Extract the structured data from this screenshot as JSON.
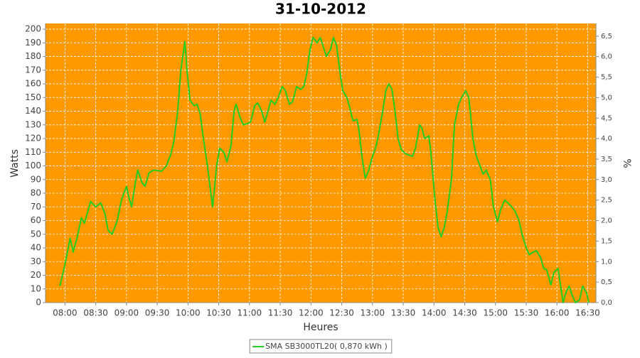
{
  "chart_data": {
    "type": "line",
    "title": "31-10-2012",
    "xlabel": "Heures",
    "ylabel": "Watts",
    "y2label": "%",
    "x": [
      "07:55",
      "08:00",
      "08:05",
      "08:08",
      "08:12",
      "08:16",
      "08:19",
      "08:25",
      "08:30",
      "08:35",
      "08:39",
      "08:42",
      "08:46",
      "08:51",
      "08:55",
      "09:00",
      "09:02",
      "09:05",
      "09:08",
      "09:11",
      "09:15",
      "09:18",
      "09:22",
      "09:27",
      "09:34",
      "09:39",
      "09:43",
      "09:46",
      "09:50",
      "09:53",
      "09:57",
      "09:59",
      "10:02",
      "10:06",
      "10:09",
      "10:12",
      "10:15",
      "10:19",
      "10:24",
      "10:28",
      "10:31",
      "10:35",
      "10:38",
      "10:42",
      "10:45",
      "10:47",
      "10:51",
      "10:54",
      "10:58",
      "11:01",
      "11:05",
      "11:08",
      "11:12",
      "11:15",
      "11:18",
      "11:21",
      "11:25",
      "11:28",
      "11:32",
      "11:35",
      "11:39",
      "11:42",
      "11:46",
      "11:50",
      "11:53",
      "11:56",
      "11:59",
      "12:02",
      "12:06",
      "12:09",
      "12:13",
      "12:15",
      "12:19",
      "12:22",
      "12:25",
      "12:28",
      "12:31",
      "12:35",
      "12:38",
      "12:41",
      "12:45",
      "12:47",
      "12:50",
      "12:53",
      "12:56",
      "13:00",
      "13:03",
      "13:06",
      "13:10",
      "13:13",
      "13:16",
      "13:19",
      "13:22",
      "13:25",
      "13:28",
      "13:32",
      "13:35",
      "13:39",
      "13:42",
      "13:46",
      "13:48",
      "13:51",
      "13:55",
      "13:57",
      "14:01",
      "14:04",
      "14:07",
      "14:10",
      "14:13",
      "14:17",
      "14:20",
      "14:24",
      "14:27",
      "14:31",
      "14:34",
      "14:38",
      "14:41",
      "14:45",
      "14:48",
      "14:51",
      "14:55",
      "14:58",
      "15:02",
      "15:05",
      "15:09",
      "15:12",
      "15:16",
      "15:19",
      "15:23",
      "15:26",
      "15:30",
      "15:33",
      "15:37",
      "15:40",
      "15:44",
      "15:47",
      "15:50",
      "15:54",
      "15:57",
      "16:01",
      "16:04",
      "16:06",
      "16:09",
      "16:12",
      "16:15",
      "16:18",
      "16:22",
      "16:25",
      "16:29",
      "16:31"
    ],
    "series": [
      {
        "name": "SMA SB3000TL20( 0,870 kWh )",
        "color": "#22cc22",
        "values": [
          12,
          28,
          47,
          37,
          48,
          62,
          58,
          74,
          70,
          73,
          65,
          53,
          50,
          60,
          75,
          85,
          78,
          70,
          85,
          97,
          88,
          85,
          95,
          97,
          96,
          100,
          108,
          117,
          140,
          170,
          191,
          170,
          148,
          144,
          145,
          138,
          120,
          100,
          70,
          100,
          113,
          110,
          103,
          115,
          140,
          145,
          135,
          130,
          131,
          132,
          144,
          146,
          140,
          132,
          140,
          148,
          145,
          150,
          158,
          155,
          145,
          147,
          158,
          156,
          158,
          168,
          185,
          194,
          190,
          194,
          185,
          180,
          185,
          194,
          188,
          170,
          155,
          150,
          142,
          133,
          134,
          125,
          105,
          91,
          96,
          107,
          113,
          123,
          140,
          155,
          160,
          156,
          140,
          120,
          112,
          109,
          108,
          107,
          113,
          130,
          128,
          120,
          122,
          110,
          75,
          55,
          48,
          55,
          67,
          90,
          130,
          145,
          150,
          155,
          150,
          120,
          108,
          100,
          94,
          97,
          90,
          70,
          59,
          68,
          75,
          73,
          70,
          67,
          60,
          50,
          40,
          35,
          37,
          38,
          33,
          25,
          24,
          13,
          22,
          25,
          10,
          0,
          8,
          12,
          5,
          0,
          2,
          12,
          7,
          0
        ]
      }
    ],
    "xlim": [
      "07:41",
      "16:38"
    ],
    "xticks": [
      "08:00",
      "08:30",
      "09:00",
      "09:30",
      "10:00",
      "10:30",
      "11:00",
      "11:30",
      "12:00",
      "12:30",
      "13:00",
      "13:30",
      "14:00",
      "14:30",
      "15:00",
      "15:30",
      "16:00",
      "16:30"
    ],
    "ylim": [
      0,
      204.2
    ],
    "yticks": [
      0,
      10,
      20,
      30,
      40,
      50,
      60,
      70,
      80,
      90,
      100,
      110,
      120,
      130,
      140,
      150,
      160,
      170,
      180,
      190,
      200
    ],
    "y2lim": [
      0,
      6.81
    ],
    "y2ticks": [
      {
        "value": 0,
        "label": "0,0"
      },
      {
        "value": 0.5,
        "label": "0,5"
      },
      {
        "value": 1,
        "label": "1,0"
      },
      {
        "value": 1.5,
        "label": "1,5"
      },
      {
        "value": 2,
        "label": "2,0"
      },
      {
        "value": 2.5,
        "label": "2,5"
      },
      {
        "value": 3,
        "label": "3,0"
      },
      {
        "value": 3.5,
        "label": "3,5"
      },
      {
        "value": 4,
        "label": "4,0"
      },
      {
        "value": 4.5,
        "label": "4,5"
      },
      {
        "value": 5,
        "label": "5,0"
      },
      {
        "value": 5.5,
        "label": "5,5"
      },
      {
        "value": 6,
        "label": "6,0"
      },
      {
        "value": 6.5,
        "label": "6,5"
      }
    ],
    "grid": true,
    "plot_background": "#ff9900",
    "legend": "bottom"
  }
}
